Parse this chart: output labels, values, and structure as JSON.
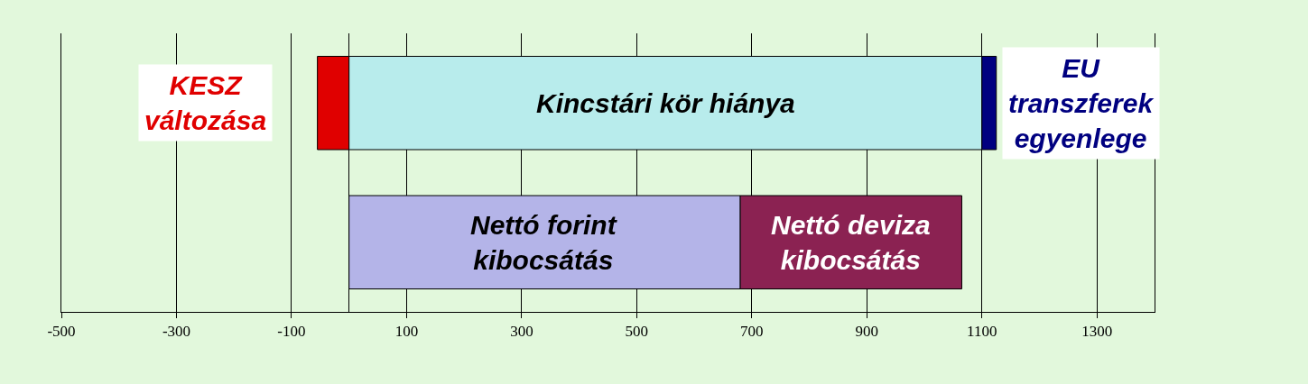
{
  "chart_data": {
    "type": "bar",
    "orientation": "horizontal",
    "stacked": true,
    "categories": [
      null,
      null
    ],
    "series": [
      {
        "name": "KESZ változása",
        "color": "#e00000",
        "values": [
          -55,
          null
        ]
      },
      {
        "name": "Kincstári kör hiánya",
        "color": "#b8ecec",
        "values": [
          1100,
          null
        ]
      },
      {
        "name": "EU transzferek egyenlege",
        "color": "#000080",
        "values": [
          25,
          null
        ]
      },
      {
        "name": "Nettó forint kibocsátás",
        "color": "#b4b4e8",
        "values": [
          null,
          680
        ]
      },
      {
        "name": "Nettó deviza kibocsátás",
        "color": "#8b2252",
        "values": [
          null,
          385
        ]
      }
    ],
    "xlim": [
      -500,
      1400
    ],
    "xticks": [
      -500,
      -300,
      -100,
      100,
      300,
      500,
      700,
      900,
      1100,
      1300
    ],
    "grid": "x",
    "legend": false,
    "tick_labels": "x"
  }
}
